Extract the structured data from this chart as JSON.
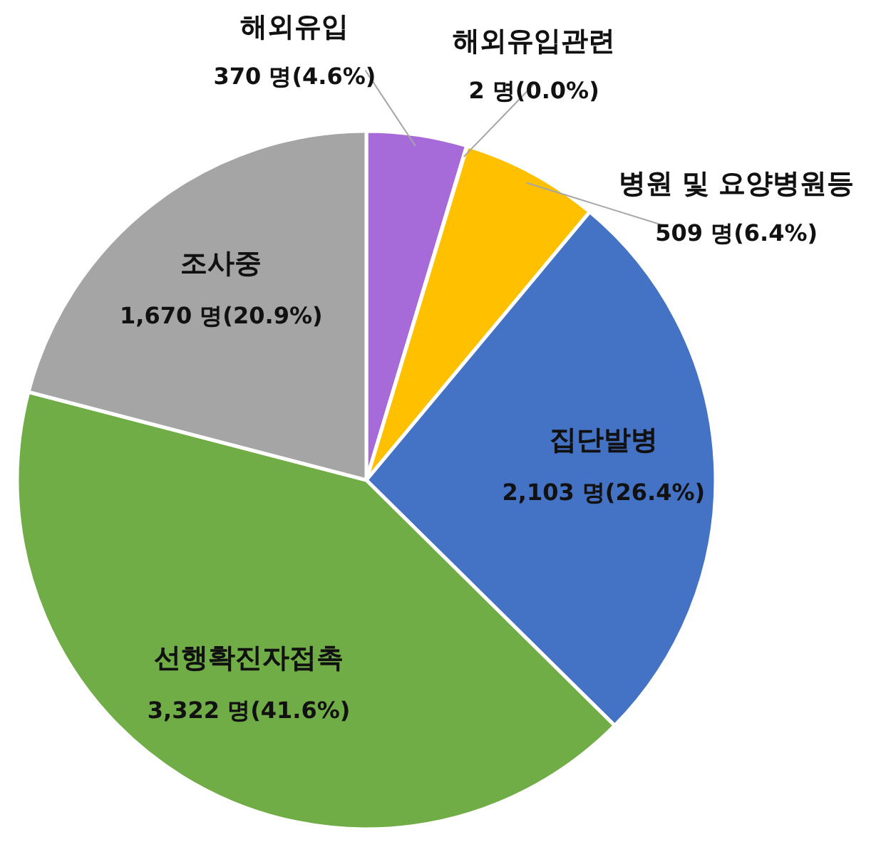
{
  "chart_data": {
    "type": "pie",
    "categories": [
      "해외유입",
      "해외유입관련",
      "병원 및 요양병원등",
      "집단발병",
      "선행확진자접촉",
      "조사중"
    ],
    "values": [
      370,
      2,
      509,
      2103,
      3322,
      1670
    ],
    "colors": [
      "#a66bd9",
      "#8f8f8f",
      "#ffc000",
      "#4472c4",
      "#70ad47",
      "#a5a5a5"
    ],
    "value_labels": [
      "370 명(4.6%)",
      "2 명(0.0%)",
      "509 명(6.4%)",
      "2,103 명(26.4%)",
      "3,322 명(41.6%)",
      "1,670 명(20.9%)"
    ]
  }
}
